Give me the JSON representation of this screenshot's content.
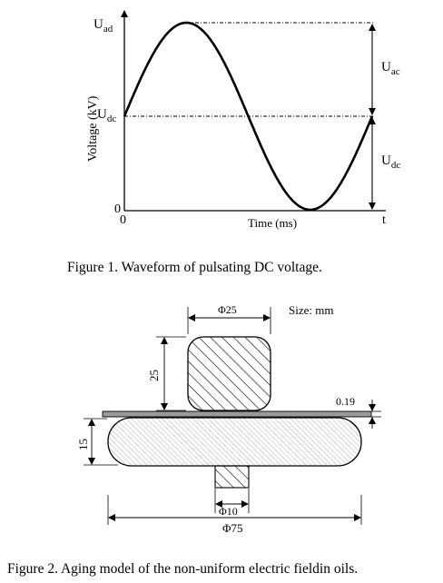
{
  "figure1": {
    "caption": "Figure 1.    Waveform of pulsating DC voltage.",
    "ylabel": "Voltage (kV)",
    "xlabel": "Time (ms)",
    "t_label": "t",
    "origin_y": "0",
    "origin_x": "0",
    "u_ad": {
      "main": "U",
      "sub": "ad"
    },
    "u_dc_axis": {
      "main": "U",
      "sub": "dc"
    },
    "u_ac": {
      "main": "U",
      "sub": "ac"
    },
    "u_dc_right": {
      "main": "U",
      "sub": "dc"
    }
  },
  "figure2": {
    "caption": "Figure 2.    Aging model of  the non-uniform electric fieldin oils.",
    "size_note": "Size: mm",
    "dim_top_diameter": "Φ25",
    "dim_top_height": "25",
    "dim_gap": "0.19",
    "dim_plate_height": "15",
    "dim_stem_diameter": "Φ10",
    "dim_plate_diameter": "Φ75"
  }
}
